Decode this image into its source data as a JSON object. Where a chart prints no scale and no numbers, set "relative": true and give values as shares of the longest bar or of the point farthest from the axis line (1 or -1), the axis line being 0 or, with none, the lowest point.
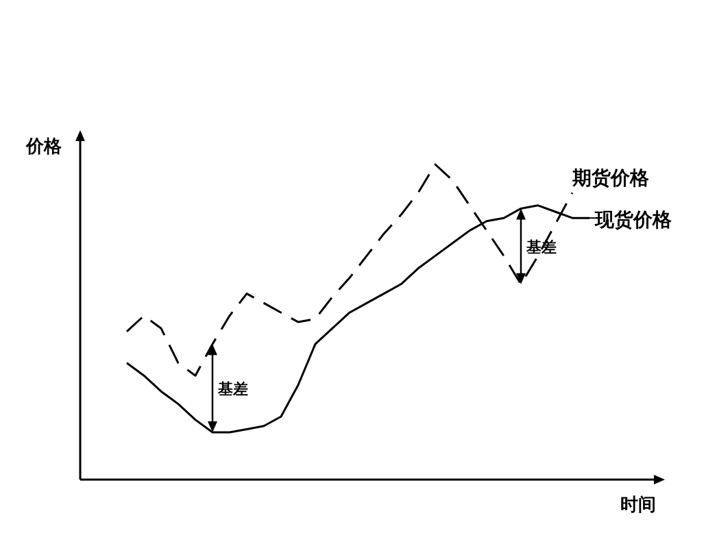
{
  "chart_data": {
    "type": "line",
    "relative": true,
    "xlabel": "时间",
    "ylabel": "价格",
    "legend": "right",
    "marker": "none",
    "categories": [
      null,
      null,
      null,
      null,
      null,
      null,
      null,
      null,
      null,
      null,
      null,
      null,
      null,
      null,
      null,
      null,
      null,
      null,
      null,
      null,
      null,
      null,
      null,
      null,
      null,
      null,
      null,
      null
    ],
    "series": [
      {
        "name": "期货价格",
        "color": "#000000",
        "line_style": "dashed",
        "values": [
          0.47,
          0.52,
          0.48,
          0.37,
          0.33,
          0.43,
          0.52,
          0.59,
          0.56,
          0.53,
          0.5,
          0.51,
          0.58,
          0.64,
          0.71,
          0.78,
          0.84,
          0.91,
          1.0,
          0.95,
          0.87,
          0.79,
          0.71,
          0.62,
          0.71,
          0.81,
          0.91,
          null
        ]
      },
      {
        "name": "现货价格",
        "color": "#000000",
        "line_style": "solid",
        "values": [
          0.37,
          0.33,
          0.28,
          0.24,
          0.19,
          0.15,
          0.15,
          0.16,
          0.17,
          0.2,
          0.3,
          0.43,
          0.48,
          0.53,
          0.56,
          0.59,
          0.62,
          0.67,
          0.71,
          0.75,
          0.79,
          0.82,
          0.83,
          0.86,
          0.87,
          0.85,
          0.83,
          0.83
        ]
      }
    ],
    "annotations": [
      "基差",
      "基差"
    ]
  }
}
